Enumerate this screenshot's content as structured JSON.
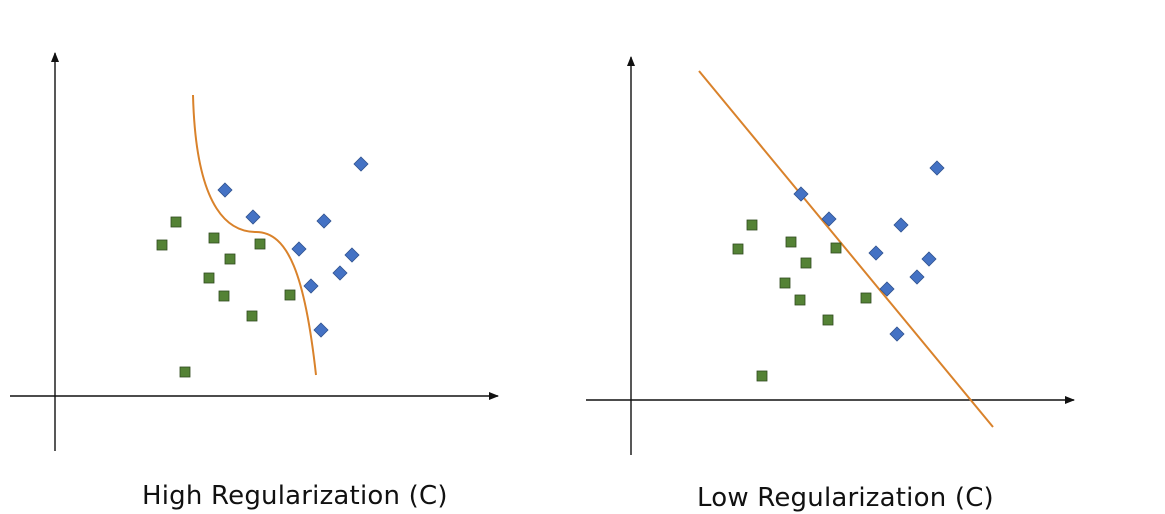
{
  "colors": {
    "class_a": "#4472c4",
    "class_b": "#548235",
    "boundary": "#d9822b",
    "axis": "#111111"
  },
  "icons": {
    "class_a_marker": "blue-diamond",
    "class_b_marker": "green-square"
  },
  "panels": [
    {
      "caption": "High Regularization (C)"
    },
    {
      "caption": "Low Regularization (C)"
    }
  ]
}
